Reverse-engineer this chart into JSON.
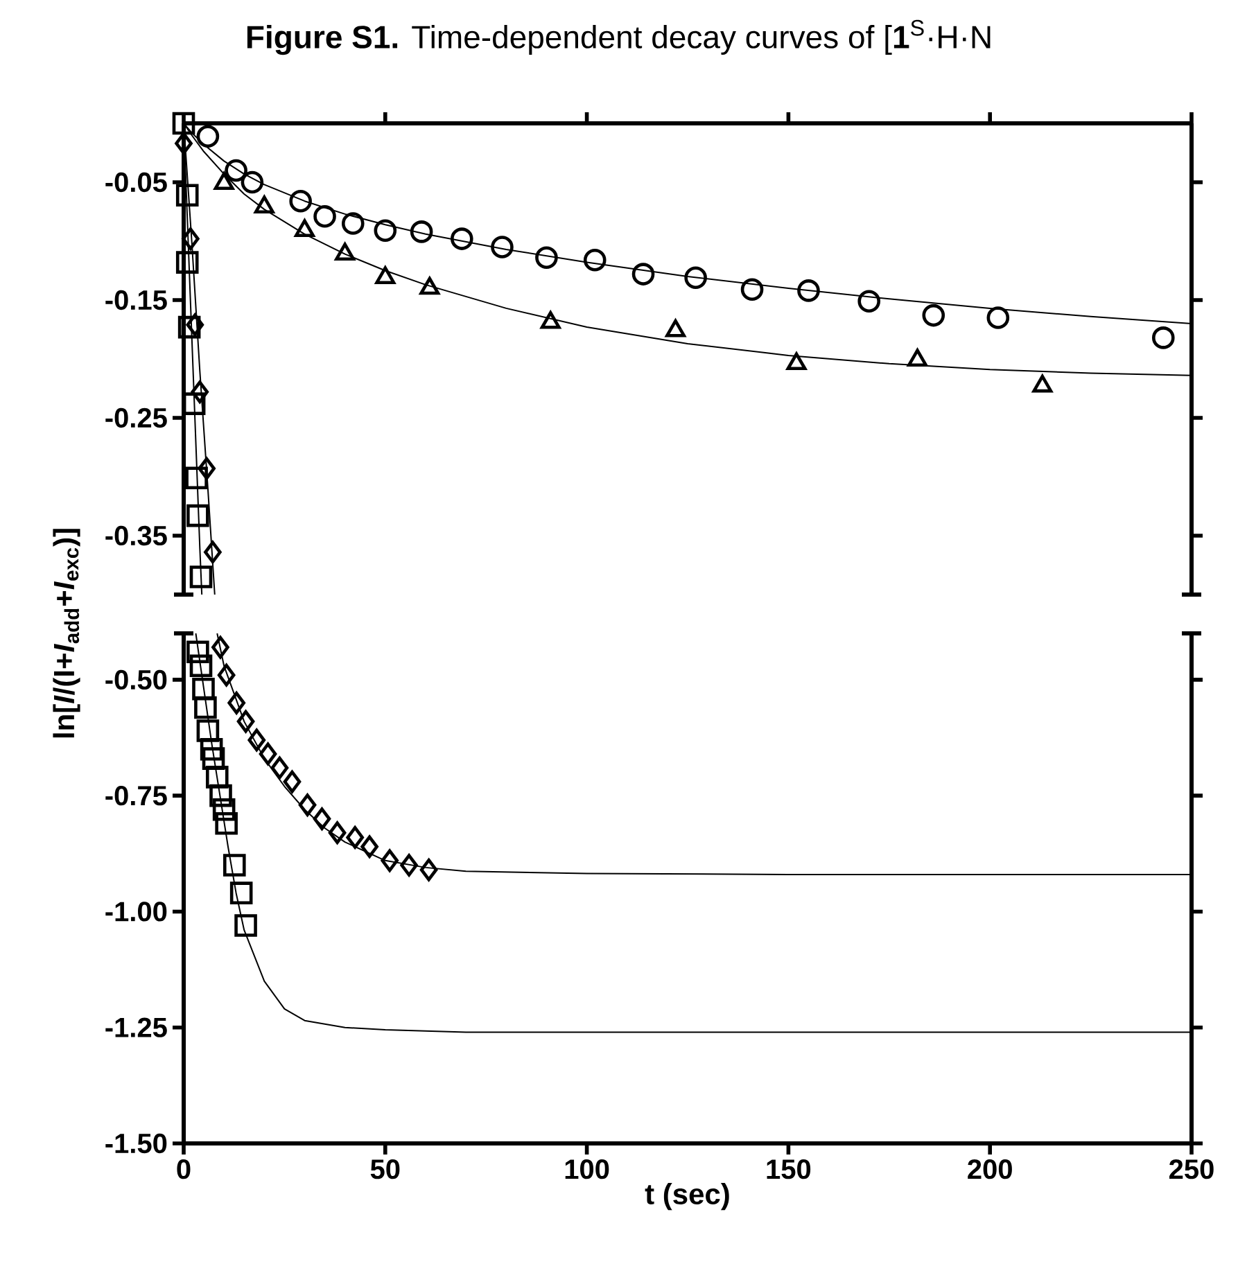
{
  "chart_data": [
    {
      "type": "scatter",
      "title": "**Figure S1.** Time-dependent decay curves of [**1**$^{S}$·H·N",
      "xlim": [
        0,
        250
      ],
      "xticks": [
        0,
        50,
        100,
        150,
        200,
        250
      ],
      "ylim": [
        -0.4,
        0
      ],
      "yticks": [
        -0.05,
        -0.15,
        -0.25,
        -0.35
      ],
      "tick_labels": "y",
      "series": [
        {
          "marker": "circle",
          "color": "#000000",
          "x": [
            6,
            13,
            17,
            29,
            35,
            42,
            50,
            59,
            69,
            79,
            90,
            102,
            114,
            127,
            141,
            155,
            170,
            186,
            202,
            243
          ],
          "values": [
            -0.011,
            -0.04,
            -0.05,
            -0.066,
            -0.079,
            -0.085,
            -0.091,
            -0.092,
            -0.098,
            -0.105,
            -0.114,
            -0.116,
            -0.128,
            -0.131,
            -0.141,
            -0.142,
            -0.151,
            -0.163,
            -0.165,
            -0.182
          ]
        },
        {
          "marker": "triangle",
          "color": "#000000",
          "x": [
            10,
            20,
            30,
            40,
            50,
            61,
            91,
            122,
            152,
            182,
            213
          ],
          "values": [
            -0.051,
            -0.071,
            -0.091,
            -0.111,
            -0.131,
            -0.14,
            -0.169,
            -0.176,
            -0.204,
            -0.201,
            -0.223
          ]
        },
        {
          "marker": "diamond",
          "color": "#000000",
          "x": [
            0,
            1.7,
            2.8,
            4.0,
            5.7,
            7.2
          ],
          "values": [
            -0.017,
            -0.098,
            -0.171,
            -0.228,
            -0.293,
            -0.364
          ]
        },
        {
          "marker": "square",
          "color": "#000000",
          "x": [
            0,
            0.9,
            0.9,
            1.4,
            2.6,
            3.2,
            3.5,
            4.3
          ],
          "values": [
            0,
            -0.061,
            -0.118,
            -0.173,
            -0.238,
            -0.301,
            -0.333,
            -0.385
          ]
        },
        {
          "type": "line",
          "color": "#000000",
          "x": [
            0,
            2,
            5,
            10,
            15,
            20,
            30,
            40,
            50,
            60,
            80,
            100,
            125,
            150,
            175,
            200,
            225,
            250
          ],
          "values": [
            0,
            -0.008,
            -0.018,
            -0.032,
            -0.043,
            -0.052,
            -0.066,
            -0.077,
            -0.086,
            -0.094,
            -0.107,
            -0.118,
            -0.13,
            -0.14,
            -0.149,
            -0.157,
            -0.164,
            -0.17
          ]
        },
        {
          "type": "line",
          "color": "#000000",
          "x": [
            0,
            2,
            5,
            10,
            15,
            20,
            30,
            40,
            50,
            60,
            80,
            100,
            125,
            150,
            175,
            200,
            225,
            250
          ],
          "values": [
            0,
            -0.01,
            -0.024,
            -0.043,
            -0.06,
            -0.073,
            -0.094,
            -0.111,
            -0.125,
            -0.137,
            -0.157,
            -0.173,
            -0.187,
            -0.197,
            -0.204,
            -0.209,
            -0.212,
            -0.214
          ]
        },
        {
          "type": "line",
          "color": "#000000",
          "x": [
            0,
            2,
            4,
            6,
            7.7
          ],
          "values": [
            0,
            -0.1,
            -0.21,
            -0.31,
            -0.4
          ]
        },
        {
          "type": "line",
          "color": "#000000",
          "x": [
            0,
            1,
            2,
            3,
            4,
            4.5
          ],
          "values": [
            0,
            -0.09,
            -0.18,
            -0.27,
            -0.36,
            -0.4
          ]
        }
      ]
    },
    {
      "type": "scatter",
      "xlabel": "t (sec)",
      "ylabel": "ln[*I*/(I+*I*$_{add}$+*I*$_{exc}$)]",
      "xlim": [
        0,
        250
      ],
      "xticks": [
        0,
        50,
        100,
        150,
        200,
        250
      ],
      "ylim": [
        -1.5,
        -0.4
      ],
      "yticks": [
        {
          "value": -0.5,
          "label": "-0.50"
        },
        {
          "value": -0.75,
          "label": "-0.75"
        },
        {
          "value": -1.0,
          "label": "-1.00"
        },
        {
          "value": -1.25,
          "label": "-1.25"
        },
        {
          "value": -1.5,
          "label": "-1.50"
        }
      ],
      "series": [
        {
          "marker": "diamond",
          "color": "#000000",
          "x": [
            9.1,
            10.6,
            13.1,
            15.4,
            18.1,
            20.9,
            23.8,
            26.9,
            30.7,
            34.3,
            38.1,
            42.5,
            46.1,
            51.1,
            55.9,
            60.8
          ],
          "values": [
            -0.43,
            -0.49,
            -0.55,
            -0.59,
            -0.63,
            -0.66,
            -0.69,
            -0.72,
            -0.77,
            -0.8,
            -0.83,
            -0.84,
            -0.86,
            -0.89,
            -0.9,
            -0.91
          ]
        },
        {
          "marker": "square",
          "color": "#000000",
          "x": [
            3.5,
            4.3,
            4.9,
            5.4,
            6.0,
            6.9,
            7.4,
            8.3,
            9.2,
            10.0,
            10.6,
            12.6,
            14.3,
            15.4
          ],
          "values": [
            -0.44,
            -0.47,
            -0.52,
            -0.56,
            -0.61,
            -0.65,
            -0.67,
            -0.71,
            -0.75,
            -0.78,
            -0.81,
            -0.9,
            -0.96,
            -1.03
          ]
        },
        {
          "type": "line",
          "color": "#000000",
          "x": [
            8.3,
            10,
            15,
            20,
            25,
            30,
            35,
            40,
            50,
            60,
            70,
            100,
            150,
            250
          ],
          "values": [
            -0.4,
            -0.47,
            -0.59,
            -0.67,
            -0.73,
            -0.78,
            -0.82,
            -0.85,
            -0.89,
            -0.905,
            -0.913,
            -0.918,
            -0.92,
            -0.92
          ]
        },
        {
          "type": "line",
          "color": "#000000",
          "x": [
            3,
            5,
            7,
            9,
            11,
            13,
            15,
            20,
            25,
            30,
            40,
            50,
            70,
            250
          ],
          "values": [
            -0.4,
            -0.52,
            -0.64,
            -0.75,
            -0.86,
            -0.96,
            -1.04,
            -1.15,
            -1.21,
            -1.235,
            -1.25,
            -1.255,
            -1.26,
            -1.26
          ]
        }
      ]
    }
  ]
}
